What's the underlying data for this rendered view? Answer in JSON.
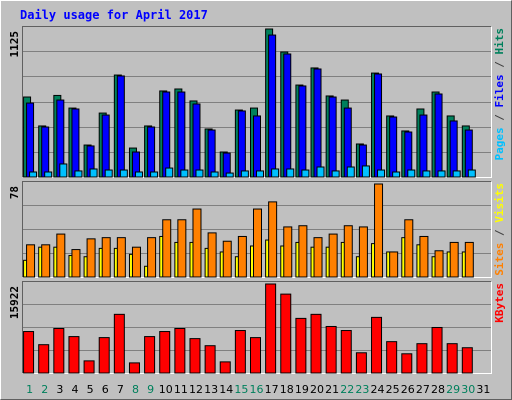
{
  "chart_data": [
    {
      "type": "bar",
      "title": "Daily usage for April 2017",
      "ylim": [
        0,
        1125
      ],
      "yticks": [
        1125
      ],
      "grid": true,
      "grid_divisions": 6,
      "legend_separator": " / ",
      "series": [
        {
          "name": "Pages",
          "color": "#00c0ff",
          "values": [
            38,
            38,
            99,
            46,
            61,
            53,
            53,
            38,
            38,
            68,
            53,
            53,
            38,
            30,
            46,
            46,
            61,
            61,
            53,
            76,
            46,
            76,
            84,
            53,
            38,
            53,
            46,
            46,
            46,
            53,
            null
          ]
        },
        {
          "name": "Files",
          "color": "#0000ff",
          "values": [
            562,
            380,
            585,
            517,
            236,
            471,
            768,
            190,
            380,
            646,
            646,
            555,
            357,
            182,
            502,
            464,
            1079,
            935,
            692,
            821,
            608,
            524,
            243,
            783,
            456,
            342,
            471,
            631,
            426,
            357,
            null
          ]
        },
        {
          "name": "Hits",
          "color": "#00805c",
          "values": [
            608,
            388,
            620,
            524,
            243,
            486,
            775,
            220,
            388,
            654,
            669,
            578,
            365,
            190,
            509,
            524,
            1125,
            950,
            699,
            829,
            616,
            585,
            251,
            790,
            464,
            350,
            517,
            646,
            464,
            388,
            null
          ]
        }
      ]
    },
    {
      "type": "bar",
      "ylim": [
        0,
        78
      ],
      "yticks": [
        78
      ],
      "grid": true,
      "grid_divisions": 4,
      "legend_separator": " / ",
      "series": [
        {
          "name": "Sites",
          "color": "#ff8000",
          "values": [
            27,
            27,
            36,
            23,
            32,
            33,
            33,
            25,
            33,
            48,
            48,
            57,
            37,
            30,
            34,
            57,
            63,
            42,
            43,
            33,
            36,
            43,
            42,
            78,
            21,
            48,
            34,
            22,
            29,
            29,
            null
          ]
        },
        {
          "name": "Visits",
          "color": "#ffff00",
          "values": [
            14,
            25,
            25,
            18,
            17,
            24,
            24,
            19,
            9,
            34,
            29,
            29,
            24,
            21,
            17,
            26,
            31,
            26,
            29,
            25,
            25,
            29,
            17,
            28,
            21,
            33,
            27,
            17,
            21,
            21,
            null
          ]
        }
      ]
    },
    {
      "type": "bar",
      "ylim": [
        0,
        15922
      ],
      "yticks": [
        15922
      ],
      "grid": true,
      "grid_divisions": 4,
      "series": [
        {
          "name": "KBytes",
          "color": "#ff0000",
          "values": [
            7418,
            5066,
            7961,
            6514,
            2171,
            6333,
            10494,
            1809,
            6514,
            7418,
            7961,
            6152,
            4885,
            1990,
            7599,
            6333,
            15922,
            14113,
            9770,
            10494,
            8323,
            7599,
            3619,
            9951,
            5609,
            3438,
            5247,
            8142,
            5247,
            4523,
            null
          ]
        }
      ],
      "categories": [
        "1",
        "2",
        "3",
        "4",
        "5",
        "6",
        "7",
        "8",
        "9",
        "10",
        "11",
        "12",
        "13",
        "14",
        "15",
        "16",
        "17",
        "18",
        "19",
        "20",
        "21",
        "22",
        "23",
        "24",
        "25",
        "26",
        "27",
        "28",
        "29",
        "30",
        "31"
      ],
      "category_colors": [
        "#00805c",
        "#00805c",
        "#000000",
        "#000000",
        "#000000",
        "#000000",
        "#000000",
        "#00805c",
        "#00805c",
        "#000000",
        "#000000",
        "#000000",
        "#000000",
        "#000000",
        "#00805c",
        "#00805c",
        "#000000",
        "#000000",
        "#000000",
        "#000000",
        "#000000",
        "#00805c",
        "#00805c",
        "#000000",
        "#000000",
        "#000000",
        "#000000",
        "#000000",
        "#00805c",
        "#00805c",
        "#000000"
      ]
    }
  ]
}
